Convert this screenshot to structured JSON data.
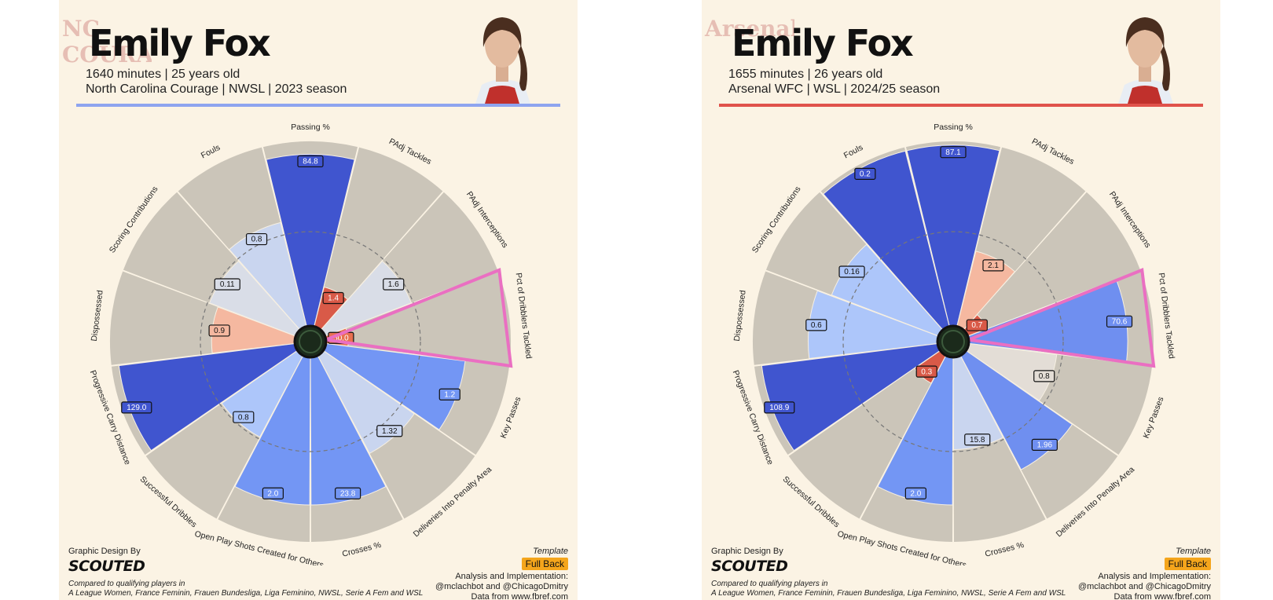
{
  "categories": [
    "Passing %",
    "PAdj Tackles",
    "PAdj Interceptions",
    "Pct of Dribblers Tackled",
    "Key Passes",
    "Deliveries Into Penalty Area",
    "Crosses %",
    "Open Play Shots Created for Others",
    "Successful Dribbles",
    "Progressive Carry Distance",
    "Dispossessed",
    "Scoring Contributions",
    "Fouls"
  ],
  "chart_data": [
    {
      "type": "radar",
      "title": "Emily Fox",
      "categories": [
        "Passing %",
        "PAdj Tackles",
        "PAdj Interceptions",
        "Pct of Dribblers Tackled",
        "Key Passes",
        "Deliveries Into Penalty Area",
        "Crosses %",
        "Open Play Shots Created for Others",
        "Successful Dribbles",
        "Progressive Carry Distance",
        "Dispossessed",
        "Scoring Contributions",
        "Fouls"
      ],
      "values": [
        "84.8",
        "1.4",
        "1.6",
        "50.0",
        "1.2",
        "1.32",
        "23.8",
        "2.0",
        "0.8",
        "129.0",
        "0.9",
        "0.11",
        "0.8"
      ],
      "percentile_rank": [
        0.93,
        0.22,
        0.5,
        0.12,
        0.76,
        0.6,
        0.8,
        0.8,
        0.5,
        0.96,
        0.45,
        0.5,
        0.58
      ],
      "colors": [
        "#4055cf",
        "#d95a48",
        "#d9dde7",
        "#e87050",
        "#7396f4",
        "#c9d5ef",
        "#7396f4",
        "#7396f4",
        "#adc6fa",
        "#4055cf",
        "#f5b8a0",
        "#d9dde7",
        "#c9d5ef"
      ],
      "highlighted_category": "Pct of Dribblers Tackled"
    },
    {
      "type": "radar",
      "title": "Emily Fox",
      "categories": [
        "Passing %",
        "PAdj Tackles",
        "PAdj Interceptions",
        "Pct of Dribblers Tackled",
        "Key Passes",
        "Deliveries Into Penalty Area",
        "Crosses %",
        "Open Play Shots Created for Others",
        "Successful Dribbles",
        "Progressive Carry Distance",
        "Dispossessed",
        "Scoring Contributions",
        "Fouls"
      ],
      "values": [
        "87.1",
        "2.1",
        "0.7",
        "70.6",
        "0.8",
        "1.96",
        "15.8",
        "2.0",
        "0.3",
        "108.9",
        "0.6",
        "0.16",
        "0.2"
      ],
      "percentile_rank": [
        0.98,
        0.42,
        0.11,
        0.86,
        0.48,
        0.7,
        0.5,
        0.8,
        0.17,
        0.96,
        0.7,
        0.62,
        0.98
      ],
      "colors": [
        "#4055cf",
        "#f5b8a0",
        "#d95a48",
        "#6f8ff0",
        "#e3ddd6",
        "#6f8ff0",
        "#c9d5ef",
        "#7396f4",
        "#d95a48",
        "#4055cf",
        "#adc6fa",
        "#adc6fa",
        "#4055cf"
      ],
      "highlighted_category": "Pct of Dribblers Tackled"
    }
  ],
  "panels": [
    {
      "crest_text": "NC COURAGE",
      "name": "Emily Fox",
      "info_line1": "1640 minutes | 25 years old",
      "info_line2": "North Carolina Courage | NWSL | 2023 season",
      "accent": "#8ea4ef"
    },
    {
      "crest_text": "Arsenal",
      "name": "Emily Fox",
      "info_line1": "1655 minutes | 26 years old",
      "info_line2": "Arsenal WFC | WSL | 2024/25 season",
      "accent": "#e0524b"
    }
  ],
  "footer": {
    "design_label": "Graphic Design By",
    "brand": "SCOUTED",
    "compared_line1": "Compared to qualifying players in",
    "compared_line2": "A League Women, France Feminin, Frauen Bundesliga, Liga Feminino, NWSL, Serie A Fem and WSL",
    "template_label": "Template",
    "template_value": "Full Back",
    "credit_line1": "Analysis and Implementation:",
    "credit_line2": "@mclachbot and @ChicagoDmitry",
    "credit_line3": "Data from www.fbref.com"
  },
  "colors": {
    "background": "#fbf3e4",
    "wedge_bg": "#cbc5b9",
    "highlight": "#ea6fc2"
  }
}
